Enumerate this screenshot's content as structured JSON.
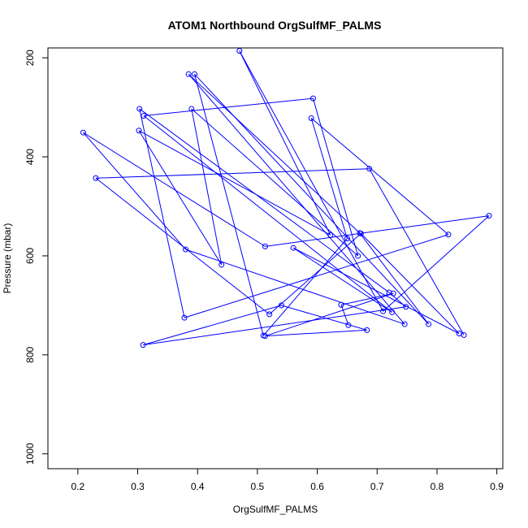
{
  "chart_data": {
    "type": "line",
    "title": "ATOM1 Northbound OrgSulfMF_PALMS",
    "xlabel": "OrgSulfMF_PALMS",
    "ylabel": "Pressure (mbar)",
    "xlim": [
      0.15,
      0.91
    ],
    "ylim": [
      1030,
      180
    ],
    "y_reversed": true,
    "x_ticks": [
      0.2,
      0.3,
      0.4,
      0.5,
      0.6,
      0.7,
      0.8,
      0.9
    ],
    "x_tick_labels": [
      "0.2",
      "0.3",
      "0.4",
      "0.5",
      "0.6",
      "0.7",
      "0.8",
      "0.9"
    ],
    "y_ticks": [
      200,
      400,
      600,
      800,
      1000
    ],
    "y_tick_labels": [
      "200",
      "400",
      "600",
      "800",
      "1000"
    ],
    "grid": false,
    "legend": "none",
    "series": [
      {
        "color": "#0000ff",
        "marker": "open-circle",
        "x": [
          0.845,
          0.687,
          0.23,
          0.52,
          0.673,
          0.837,
          0.56,
          0.725,
          0.31,
          0.593,
          0.668,
          0.39,
          0.44,
          0.302,
          0.622,
          0.47,
          0.71,
          0.887,
          0.513,
          0.209,
          0.38,
          0.746,
          0.385,
          0.671,
          0.786,
          0.395,
          0.51,
          0.65,
          0.59,
          0.819,
          0.378,
          0.303,
          0.72,
          0.748,
          0.309,
          0.54,
          0.683,
          0.513,
          0.727,
          0.64,
          0.652
        ],
        "y": [
          760,
          424,
          443,
          718,
          555,
          757,
          584,
          714,
          317,
          282,
          600,
          303,
          618,
          347,
          558,
          186,
          712,
          519,
          581,
          351,
          587,
          738,
          233,
          554,
          738,
          233,
          761,
          565,
          322,
          557,
          725,
          303,
          674,
          703,
          780,
          700,
          750,
          762,
          676,
          699,
          740
        ]
      }
    ]
  }
}
